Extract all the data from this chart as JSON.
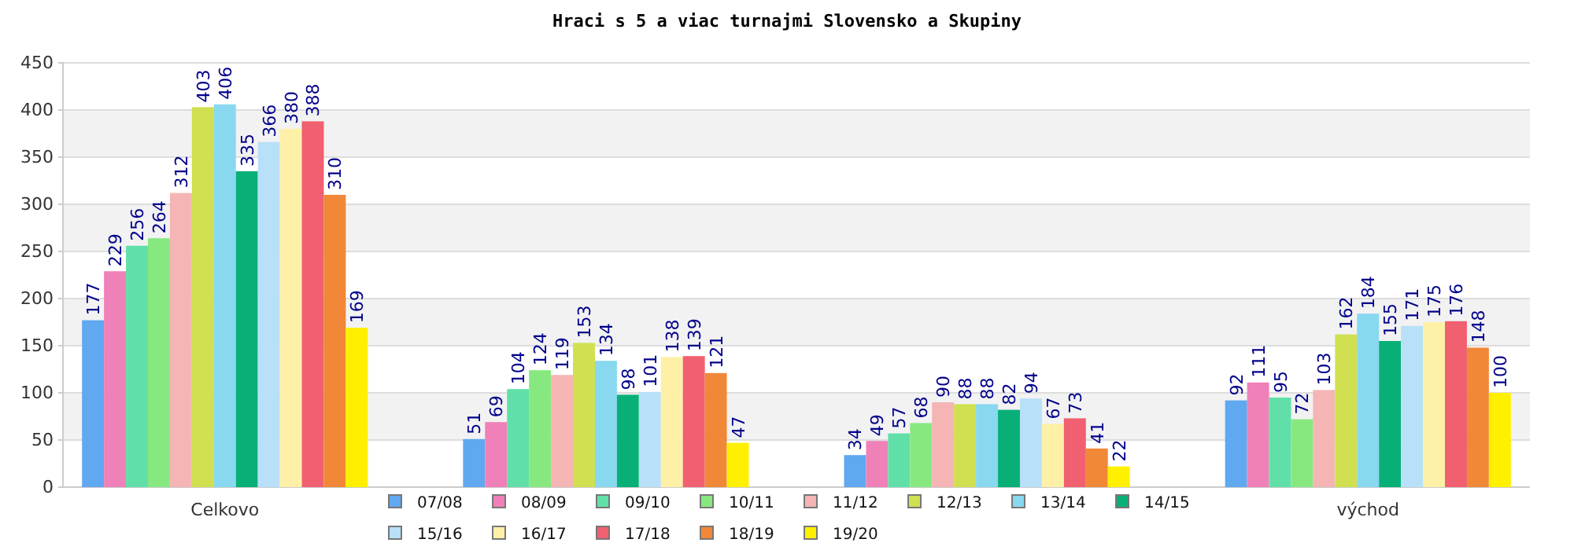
{
  "chart_data": {
    "type": "bar",
    "title": "Hraci s 5 a viac turnajmi Slovensko a Skupiny",
    "categories": [
      "Celkovo",
      null,
      null,
      "východ"
    ],
    "series": [
      {
        "name": "07/08",
        "color": "#60a8f0",
        "values": [
          177,
          51,
          34,
          92
        ]
      },
      {
        "name": "08/09",
        "color": "#f080b8",
        "values": [
          229,
          69,
          49,
          111
        ]
      },
      {
        "name": "09/10",
        "color": "#60e0a8",
        "values": [
          256,
          104,
          57,
          95
        ]
      },
      {
        "name": "10/11",
        "color": "#88e880",
        "values": [
          264,
          124,
          68,
          72
        ]
      },
      {
        "name": "11/12",
        "color": "#f5b5b5",
        "values": [
          312,
          119,
          90,
          103
        ]
      },
      {
        "name": "12/13",
        "color": "#d0e050",
        "values": [
          403,
          153,
          88,
          162
        ]
      },
      {
        "name": "13/14",
        "color": "#88d8f0",
        "values": [
          406,
          134,
          88,
          184
        ]
      },
      {
        "name": "14/15",
        "color": "#08b078",
        "values": [
          335,
          98,
          82,
          155
        ]
      },
      {
        "name": "15/16",
        "color": "#b8e0f8",
        "values": [
          366,
          101,
          94,
          171
        ]
      },
      {
        "name": "16/17",
        "color": "#fff0a8",
        "values": [
          380,
          138,
          67,
          175
        ]
      },
      {
        "name": "17/18",
        "color": "#f06070",
        "values": [
          388,
          139,
          73,
          176
        ]
      },
      {
        "name": "18/19",
        "color": "#f08838",
        "values": [
          310,
          121,
          41,
          148
        ]
      },
      {
        "name": "19/20",
        "color": "#fff000",
        "values": [
          169,
          47,
          22,
          100
        ]
      }
    ],
    "ylim": [
      0,
      450
    ],
    "yticks": [
      0,
      50,
      100,
      150,
      200,
      250,
      300,
      350,
      400,
      450
    ],
    "grid": "y",
    "legend": "bottom",
    "data_labels": true
  }
}
